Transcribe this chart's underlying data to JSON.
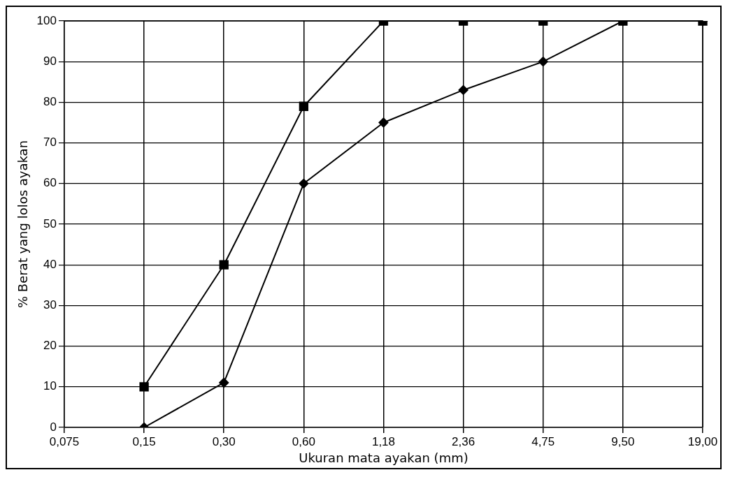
{
  "chart_data": {
    "type": "line",
    "xlabel": "Ukuran mata ayakan (mm)",
    "ylabel": "% Berat yang lolos ayakan",
    "categories": [
      "0,075",
      "0,15",
      "0,30",
      "0,60",
      "1,18",
      "2,36",
      "4,75",
      "9,50",
      "19,00"
    ],
    "ylim": [
      0,
      100
    ],
    "yticks": [
      0,
      10,
      20,
      30,
      40,
      50,
      60,
      70,
      80,
      90,
      100
    ],
    "grid": true,
    "legend": false,
    "series": [
      {
        "color": "#000000",
        "marker": "square",
        "values": [
          null,
          10,
          40,
          79,
          100,
          100,
          100,
          100,
          100
        ]
      },
      {
        "color": "#000000",
        "marker": "diamond",
        "values": [
          null,
          0,
          11,
          60,
          75,
          83,
          90,
          100,
          100
        ]
      }
    ]
  }
}
